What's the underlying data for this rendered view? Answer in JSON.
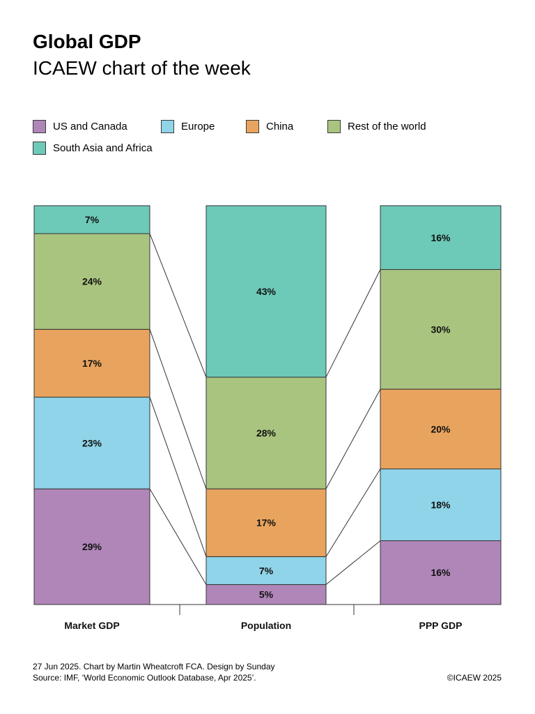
{
  "header": {
    "title": "Global GDP",
    "subtitle": "ICAEW chart of the week"
  },
  "colors": {
    "US and Canada": "#b086b9",
    "Europe": "#8fd4e8",
    "China": "#e8a45e",
    "Rest of the world": "#a9c47f",
    "South Asia and Africa": "#6dc9b8",
    "outline": "#333333"
  },
  "chart_data": {
    "type": "bar",
    "stacked": true,
    "percent": true,
    "categories": [
      "Market GDP",
      "Population",
      "PPP GDP"
    ],
    "series": [
      {
        "name": "US and Canada",
        "values": [
          29,
          5,
          16
        ]
      },
      {
        "name": "Europe",
        "values": [
          23,
          7,
          18
        ]
      },
      {
        "name": "China",
        "values": [
          17,
          17,
          20
        ]
      },
      {
        "name": "Rest of the world",
        "values": [
          24,
          28,
          30
        ]
      },
      {
        "name": "South Asia and Africa",
        "values": [
          7,
          43,
          16
        ]
      }
    ],
    "title": "Global GDP",
    "subtitle": "ICAEW chart of the week",
    "legend": "top",
    "connector_lines": true
  },
  "footer": {
    "credit": "27 Jun 2025.   Chart by Martin Wheatcroft FCA.  Design by Sunday",
    "source": "Source: IMF, ‘World Economic Outlook Database, Apr 2025’.",
    "copyright": "©ICAEW 2025"
  }
}
